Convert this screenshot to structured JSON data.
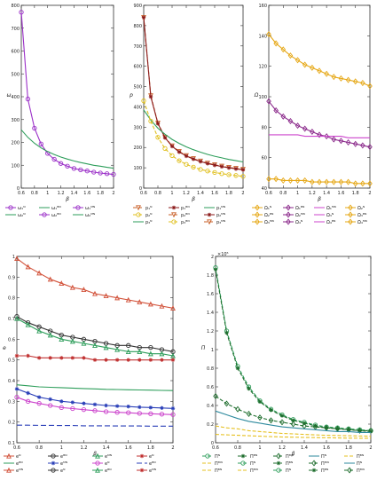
{
  "chart_data": [
    {
      "type": "line",
      "ylabel": "ω",
      "xlabel": "β",
      "xlim": [
        0.6,
        2
      ],
      "ylim": [
        0,
        800
      ],
      "xticks": [
        "0.6",
        "0.8",
        "1",
        "1.2",
        "1.4",
        "1.6",
        "1.8",
        "2"
      ],
      "yticks": [
        "0",
        "100",
        "200",
        "300",
        "400",
        "500",
        "600",
        "700",
        "800"
      ],
      "x": [
        0.6,
        0.7,
        0.8,
        0.9,
        1.0,
        1.1,
        1.2,
        1.3,
        1.4,
        1.5,
        1.6,
        1.7,
        1.8,
        1.9,
        2.0
      ],
      "series": [
        {
          "color": "#9b30c8",
          "marker": "o",
          "dash": "",
          "values": [
            770,
            390,
            262,
            193,
            152,
            126,
            108,
            96,
            86,
            80,
            75,
            70,
            66,
            63,
            60
          ]
        },
        {
          "color": "#2e9e5b",
          "marker": "",
          "dash": "",
          "values": [
            255,
            222,
            196,
            176,
            160,
            147,
            136,
            127,
            119,
            112,
            106,
            100,
            96,
            91,
            87
          ]
        }
      ],
      "legend": [
        "ω₁ᴺ",
        "ω₁ᴮᴺ",
        "ω₁ᴹᴺ",
        "ω₂ᴺ",
        "ω₂ᴮᴺ",
        "ω₂ᴹᴺ"
      ]
    },
    {
      "type": "line",
      "ylabel": "p",
      "xlabel": "β",
      "xlim": [
        0.6,
        2
      ],
      "ylim": [
        0,
        900
      ],
      "xticks": [
        "0.6",
        "0.8",
        "1",
        "1.2",
        "1.4",
        "1.6",
        "1.8",
        "2"
      ],
      "yticks": [
        "0",
        "100",
        "200",
        "300",
        "400",
        "500",
        "600",
        "700",
        "800",
        "900"
      ],
      "x": [
        0.6,
        0.7,
        0.8,
        0.9,
        1.0,
        1.1,
        1.2,
        1.3,
        1.4,
        1.5,
        1.6,
        1.7,
        1.8,
        1.9,
        2.0
      ],
      "series": [
        {
          "color": "#c9612a",
          "marker": "v",
          "dash": "4 2",
          "values": [
            840,
            455,
            320,
            250,
            208,
            180,
            160,
            145,
            133,
            123,
            115,
            108,
            102,
            97,
            92
          ]
        },
        {
          "color": "#8b1a1a",
          "marker": "*",
          "dash": "",
          "values": [
            840,
            450,
            318,
            248,
            206,
            178,
            158,
            143,
            131,
            121,
            113,
            106,
            100,
            95,
            90
          ]
        },
        {
          "color": "#2e9e5b",
          "marker": "",
          "dash": "",
          "values": [
            385,
            335,
            295,
            265,
            240,
            220,
            203,
            189,
            177,
            166,
            157,
            149,
            141,
            135,
            129
          ]
        },
        {
          "color": "#e0c020",
          "marker": "o",
          "dash": "4 2",
          "values": [
            430,
            330,
            250,
            195,
            160,
            135,
            117,
            103,
            92,
            84,
            77,
            71,
            66,
            62,
            58
          ]
        }
      ],
      "legend": [
        "p₁ᴺ",
        "p₁ᴮᴺ",
        "p₁ᴹᴺ",
        "p₂ᴺ",
        "p₂ᴮᴺ",
        "p₂ᴹᴺ",
        "p₃ᴺ",
        "p₃ᴮᴺ",
        "p₃ᴹᴺ"
      ]
    },
    {
      "type": "line",
      "ylabel": "Ω",
      "xlabel": "β",
      "xlim": [
        0.6,
        2
      ],
      "ylim": [
        40,
        160
      ],
      "xticks": [
        "0.6",
        "0.8",
        "1",
        "1.2",
        "1.4",
        "1.6",
        "1.8",
        "2"
      ],
      "yticks": [
        "40",
        "60",
        "80",
        "100",
        "120",
        "140",
        "160"
      ],
      "x": [
        0.6,
        0.7,
        0.8,
        0.9,
        1.0,
        1.1,
        1.2,
        1.3,
        1.4,
        1.5,
        1.6,
        1.7,
        1.8,
        1.9,
        2.0
      ],
      "series": [
        {
          "color": "#e6a817",
          "marker": "d",
          "dash": "",
          "values": [
            141,
            135,
            131,
            127,
            124,
            121,
            119,
            117,
            115,
            113,
            112,
            111,
            110,
            109,
            107
          ]
        },
        {
          "color": "#8b2a8b",
          "marker": "d",
          "dash": "",
          "values": [
            97,
            91,
            87,
            84,
            81,
            79,
            77,
            75,
            74,
            72,
            71,
            70,
            69,
            68,
            67
          ]
        },
        {
          "color": "#cc44cc",
          "marker": "",
          "dash": "",
          "values": [
            75,
            75,
            75,
            75,
            75,
            74,
            74,
            74,
            74,
            74,
            74,
            73,
            73,
            73,
            73
          ]
        },
        {
          "color": "#e6a817",
          "marker": "d",
          "dash": "",
          "values": [
            46,
            46,
            45,
            45,
            45,
            45,
            44,
            44,
            44,
            44,
            44,
            44,
            43,
            43,
            43
          ]
        }
      ],
      "legend": [
        "Ω₁ᴺ",
        "Ω₁ᴮᴺ",
        "Ω₁ᴹᴺ",
        "Ω₂ᴺ",
        "Ω₂ᴮᴺ",
        "Ω₂ᴹᴺ",
        "Ω₃ᴺ",
        "Ω₃ᴮᴺ",
        "Ω₃ᴹᴺ",
        "Ω₄ᴺ",
        "Ω₄ᴮᴺ",
        "Ω₄ᴹᴺ"
      ]
    },
    {
      "type": "line",
      "ylabel": "e",
      "xlabel": "β",
      "xlim": [
        0.6,
        2
      ],
      "ylim": [
        0.1,
        1
      ],
      "xticks": [
        "0.6",
        "0.8",
        "1",
        "1.2",
        "1.4",
        "1.6",
        "1.8",
        "2"
      ],
      "yticks": [
        "0.1",
        "0.2",
        "0.3",
        "0.4",
        "0.5",
        "0.6",
        "0.7",
        "0.8",
        "0.9",
        "1"
      ],
      "x": [
        0.6,
        0.7,
        0.8,
        0.9,
        1.0,
        1.1,
        1.2,
        1.3,
        1.4,
        1.5,
        1.6,
        1.7,
        1.8,
        1.9,
        2.0
      ],
      "series": [
        {
          "color": "#d2523a",
          "marker": "triangle",
          "dash": "",
          "values": [
            0.99,
            0.95,
            0.92,
            0.89,
            0.87,
            0.85,
            0.84,
            0.82,
            0.81,
            0.8,
            0.79,
            0.78,
            0.77,
            0.76,
            0.75
          ]
        },
        {
          "color": "#333333",
          "marker": "o",
          "dash": "",
          "values": [
            0.71,
            0.68,
            0.66,
            0.64,
            0.62,
            0.61,
            0.6,
            0.59,
            0.58,
            0.57,
            0.57,
            0.56,
            0.56,
            0.55,
            0.54
          ]
        },
        {
          "color": "#2e9e5b",
          "marker": "triangle",
          "dash": "",
          "values": [
            0.7,
            0.67,
            0.64,
            0.62,
            0.6,
            0.59,
            0.58,
            0.57,
            0.56,
            0.55,
            0.54,
            0.54,
            0.53,
            0.53,
            0.52
          ]
        },
        {
          "color": "#c03030",
          "marker": "*",
          "dash": "",
          "values": [
            0.52,
            0.52,
            0.51,
            0.51,
            0.51,
            0.51,
            0.51,
            0.5,
            0.5,
            0.5,
            0.5,
            0.5,
            0.5,
            0.5,
            0.5
          ]
        },
        {
          "color": "#2e9e5b",
          "marker": "",
          "dash": "",
          "values": [
            0.38,
            0.375,
            0.37,
            0.368,
            0.366,
            0.364,
            0.362,
            0.36,
            0.358,
            0.357,
            0.356,
            0.355,
            0.354,
            0.353,
            0.352
          ]
        },
        {
          "color": "#2a3fb8",
          "marker": "*",
          "dash": "",
          "values": [
            0.36,
            0.34,
            0.32,
            0.31,
            0.3,
            0.295,
            0.29,
            0.285,
            0.28,
            0.277,
            0.275,
            0.272,
            0.27,
            0.268,
            0.266
          ]
        },
        {
          "color": "#cc44cc",
          "marker": "o",
          "dash": "",
          "values": [
            0.32,
            0.3,
            0.29,
            0.28,
            0.27,
            0.265,
            0.26,
            0.255,
            0.25,
            0.247,
            0.245,
            0.242,
            0.24,
            0.238,
            0.236
          ]
        },
        {
          "color": "#2a3fb8",
          "marker": "",
          "dash": "6 3",
          "values": [
            0.185,
            0.185,
            0.184,
            0.184,
            0.183,
            0.183,
            0.182,
            0.182,
            0.182,
            0.181,
            0.181,
            0.181,
            0.18,
            0.18,
            0.18
          ]
        }
      ],
      "legend": [
        "eᴺ",
        "eᴮᴺ",
        "eᴹᴺ",
        "eᴺ",
        "eᴮᴺ",
        "eᴹᴺ",
        "eᴺ",
        "eᴮᴺ",
        "eᴹᴺ",
        "eᴺ",
        "eᴮᴺ",
        "eᴹᴺ"
      ]
    },
    {
      "type": "line",
      "ylabel": "Π",
      "xlabel": "β",
      "xlim": [
        0.6,
        2
      ],
      "ylim": [
        0,
        2
      ],
      "exponent": "×10⁵",
      "xticks": [
        "0.6",
        "0.8",
        "1",
        "1.2",
        "1.4",
        "1.6",
        "1.8",
        "2"
      ],
      "yticks": [
        "0",
        "0.2",
        "0.4",
        "0.6",
        "0.8",
        "1",
        "1.2",
        "1.4",
        "1.6",
        "1.8",
        "2"
      ],
      "x": [
        0.6,
        0.7,
        0.8,
        0.9,
        1.0,
        1.1,
        1.2,
        1.3,
        1.4,
        1.5,
        1.6,
        1.7,
        1.8,
        1.9,
        2.0
      ],
      "series": [
        {
          "color": "#2e9e5b",
          "marker": "o",
          "dash": "4 2",
          "values": [
            1.88,
            1.2,
            0.82,
            0.6,
            0.45,
            0.36,
            0.3,
            0.25,
            0.22,
            0.19,
            0.17,
            0.16,
            0.15,
            0.14,
            0.13
          ]
        },
        {
          "color": "#1f6e2e",
          "marker": "*",
          "dash": "4 2",
          "values": [
            1.86,
            1.18,
            0.8,
            0.58,
            0.44,
            0.35,
            0.29,
            0.24,
            0.21,
            0.18,
            0.16,
            0.15,
            0.14,
            0.13,
            0.12
          ]
        },
        {
          "color": "#1f6e2e",
          "marker": "d",
          "dash": "4 2",
          "values": [
            0.5,
            0.42,
            0.36,
            0.31,
            0.27,
            0.24,
            0.22,
            0.2,
            0.18,
            0.17,
            0.16,
            0.15,
            0.14,
            0.13,
            0.13
          ]
        },
        {
          "color": "#2e8a9e",
          "marker": "",
          "dash": "",
          "values": [
            0.34,
            0.3,
            0.26,
            0.23,
            0.21,
            0.19,
            0.17,
            0.16,
            0.15,
            0.14,
            0.13,
            0.12,
            0.12,
            0.11,
            0.11
          ]
        },
        {
          "color": "#e6c020",
          "marker": "",
          "dash": "4 2",
          "values": [
            0.18,
            0.16,
            0.15,
            0.13,
            0.12,
            0.11,
            0.1,
            0.095,
            0.09,
            0.085,
            0.08,
            0.078,
            0.075,
            0.072,
            0.07
          ]
        },
        {
          "color": "#e6c020",
          "marker": "",
          "dash": "4 2",
          "values": [
            0.09,
            0.085,
            0.08,
            0.075,
            0.07,
            0.066,
            0.062,
            0.06,
            0.057,
            0.055,
            0.053,
            0.051,
            0.05,
            0.049,
            0.048
          ]
        }
      ],
      "legend": [
        "Πᴺ",
        "Πᴮᴺ",
        "Πᴹᴺ",
        "Πᴺ",
        "Πᴮᴺ",
        "Πᴹᴺ",
        "Πᴺ",
        "Πᴮᴺ",
        "Πᴹᴺ",
        "Πᴺ",
        "Πᴮᴺ",
        "Πᴹᴺ",
        "Πᴺ",
        "Πᴮᴺ",
        "Πᴹᴺ"
      ]
    }
  ]
}
